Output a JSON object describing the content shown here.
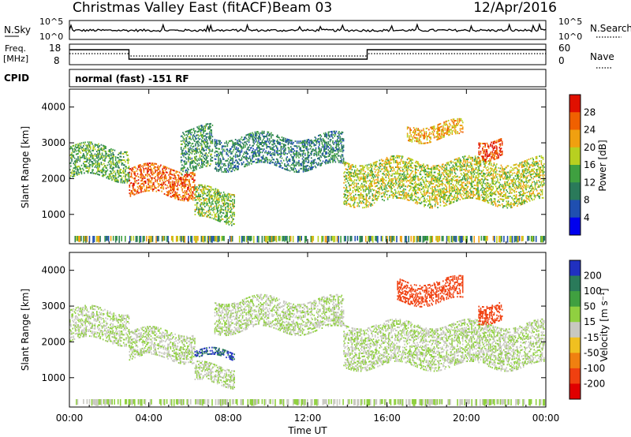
{
  "header": {
    "title": "Christmas Valley East (fitACF)",
    "beam": "Beam 03",
    "date": "12/Apr/2016"
  },
  "top_panels": {
    "nsky_label": "N.Sky",
    "nsky_ticks": [
      "10^5",
      "10^0"
    ],
    "nsearch_label": "N.Search",
    "nsearch_ticks": [
      "10^5",
      "10^0"
    ],
    "freq_label": "Freq.",
    "freq_unit": "[MHz]",
    "freq_ticks": [
      "18",
      "8"
    ],
    "nave_label": "Nave",
    "nave_ticks": [
      "60",
      "0"
    ],
    "cpid_label": "CPID",
    "cpid_text": "normal (fast) -151 RF"
  },
  "axes": {
    "ylabel": "Slant Range [km]",
    "xlabel": "Time UT",
    "x_ticks": [
      "00:00",
      "04:00",
      "08:00",
      "12:00",
      "16:00",
      "20:00",
      "00:00"
    ],
    "y_ticks": [
      "1000",
      "2000",
      "3000",
      "4000"
    ]
  },
  "power_scale": {
    "label": "Power [dB]",
    "ticks": [
      "4",
      "8",
      "12",
      "16",
      "20",
      "24",
      "28"
    ],
    "colors": [
      "#0000ee",
      "#1f4fb0",
      "#2a7a5a",
      "#3fa040",
      "#b8d020",
      "#f0a010",
      "#f06000",
      "#e01000"
    ]
  },
  "velocity_scale": {
    "label": "Velocity [m s⁻¹]",
    "ticks": [
      "200",
      "100",
      "50",
      "15",
      "-15",
      "-50",
      "-100",
      "-200"
    ],
    "colors": [
      "#2030c0",
      "#2a7a5a",
      "#40a040",
      "#90d040",
      "#c8c8c0",
      "#f0c020",
      "#f08010",
      "#f04010",
      "#e00000"
    ]
  },
  "chart_data": [
    {
      "type": "heatmap",
      "title": "Power",
      "xlabel": "Time UT",
      "ylabel": "Slant Range [km]",
      "xlim": [
        0,
        24
      ],
      "ylim": [
        180,
        4500
      ],
      "colorbar": {
        "label": "Power [dB]",
        "range": [
          0,
          32
        ]
      },
      "bands": [
        {
          "t0": 0.0,
          "t1": 3.0,
          "r0": 2000,
          "r1": 2900,
          "v": 14
        },
        {
          "t0": 3.0,
          "t1": 6.3,
          "r0": 1500,
          "r1": 2300,
          "v": 26
        },
        {
          "t0": 5.6,
          "t1": 7.2,
          "r0": 2200,
          "r1": 3400,
          "v": 12
        },
        {
          "t0": 6.3,
          "t1": 8.3,
          "r0": 800,
          "r1": 1700,
          "v": 16
        },
        {
          "t0": 7.3,
          "t1": 13.8,
          "r0": 2300,
          "r1": 3200,
          "v": 10
        },
        {
          "t0": 13.8,
          "t1": 23.9,
          "r0": 1300,
          "r1": 2500,
          "v": 18
        },
        {
          "t0": 17.0,
          "t1": 19.8,
          "r0": 3100,
          "r1": 3550,
          "v": 22
        },
        {
          "t0": 20.6,
          "t1": 21.8,
          "r0": 2600,
          "r1": 3100,
          "v": 28
        }
      ]
    },
    {
      "type": "heatmap",
      "title": "Velocity",
      "xlabel": "Time UT",
      "ylabel": "Slant Range [km]",
      "xlim": [
        0,
        24
      ],
      "ylim": [
        180,
        4500
      ],
      "colorbar": {
        "label": "Velocity [m s⁻¹]",
        "range": [
          -250,
          250
        ]
      },
      "bands": [
        {
          "t0": 0.0,
          "t1": 3.0,
          "r0": 2000,
          "r1": 2900,
          "v": 0
        },
        {
          "t0": 3.0,
          "t1": 6.3,
          "r0": 1500,
          "r1": 2300,
          "v": 0
        },
        {
          "t0": 6.3,
          "t1": 8.3,
          "r0": 1500,
          "r1": 1700,
          "v": 150
        },
        {
          "t0": 6.3,
          "t1": 8.3,
          "r0": 800,
          "r1": 1300,
          "v": 0
        },
        {
          "t0": 7.3,
          "t1": 13.8,
          "r0": 2300,
          "r1": 3200,
          "v": 0
        },
        {
          "t0": 13.8,
          "t1": 23.9,
          "r0": 1300,
          "r1": 2500,
          "v": 0
        },
        {
          "t0": 16.5,
          "t1": 19.8,
          "r0": 3100,
          "r1": 3700,
          "v": -220
        },
        {
          "t0": 20.6,
          "t1": 21.8,
          "r0": 2600,
          "r1": 3100,
          "v": -220
        }
      ]
    }
  ]
}
